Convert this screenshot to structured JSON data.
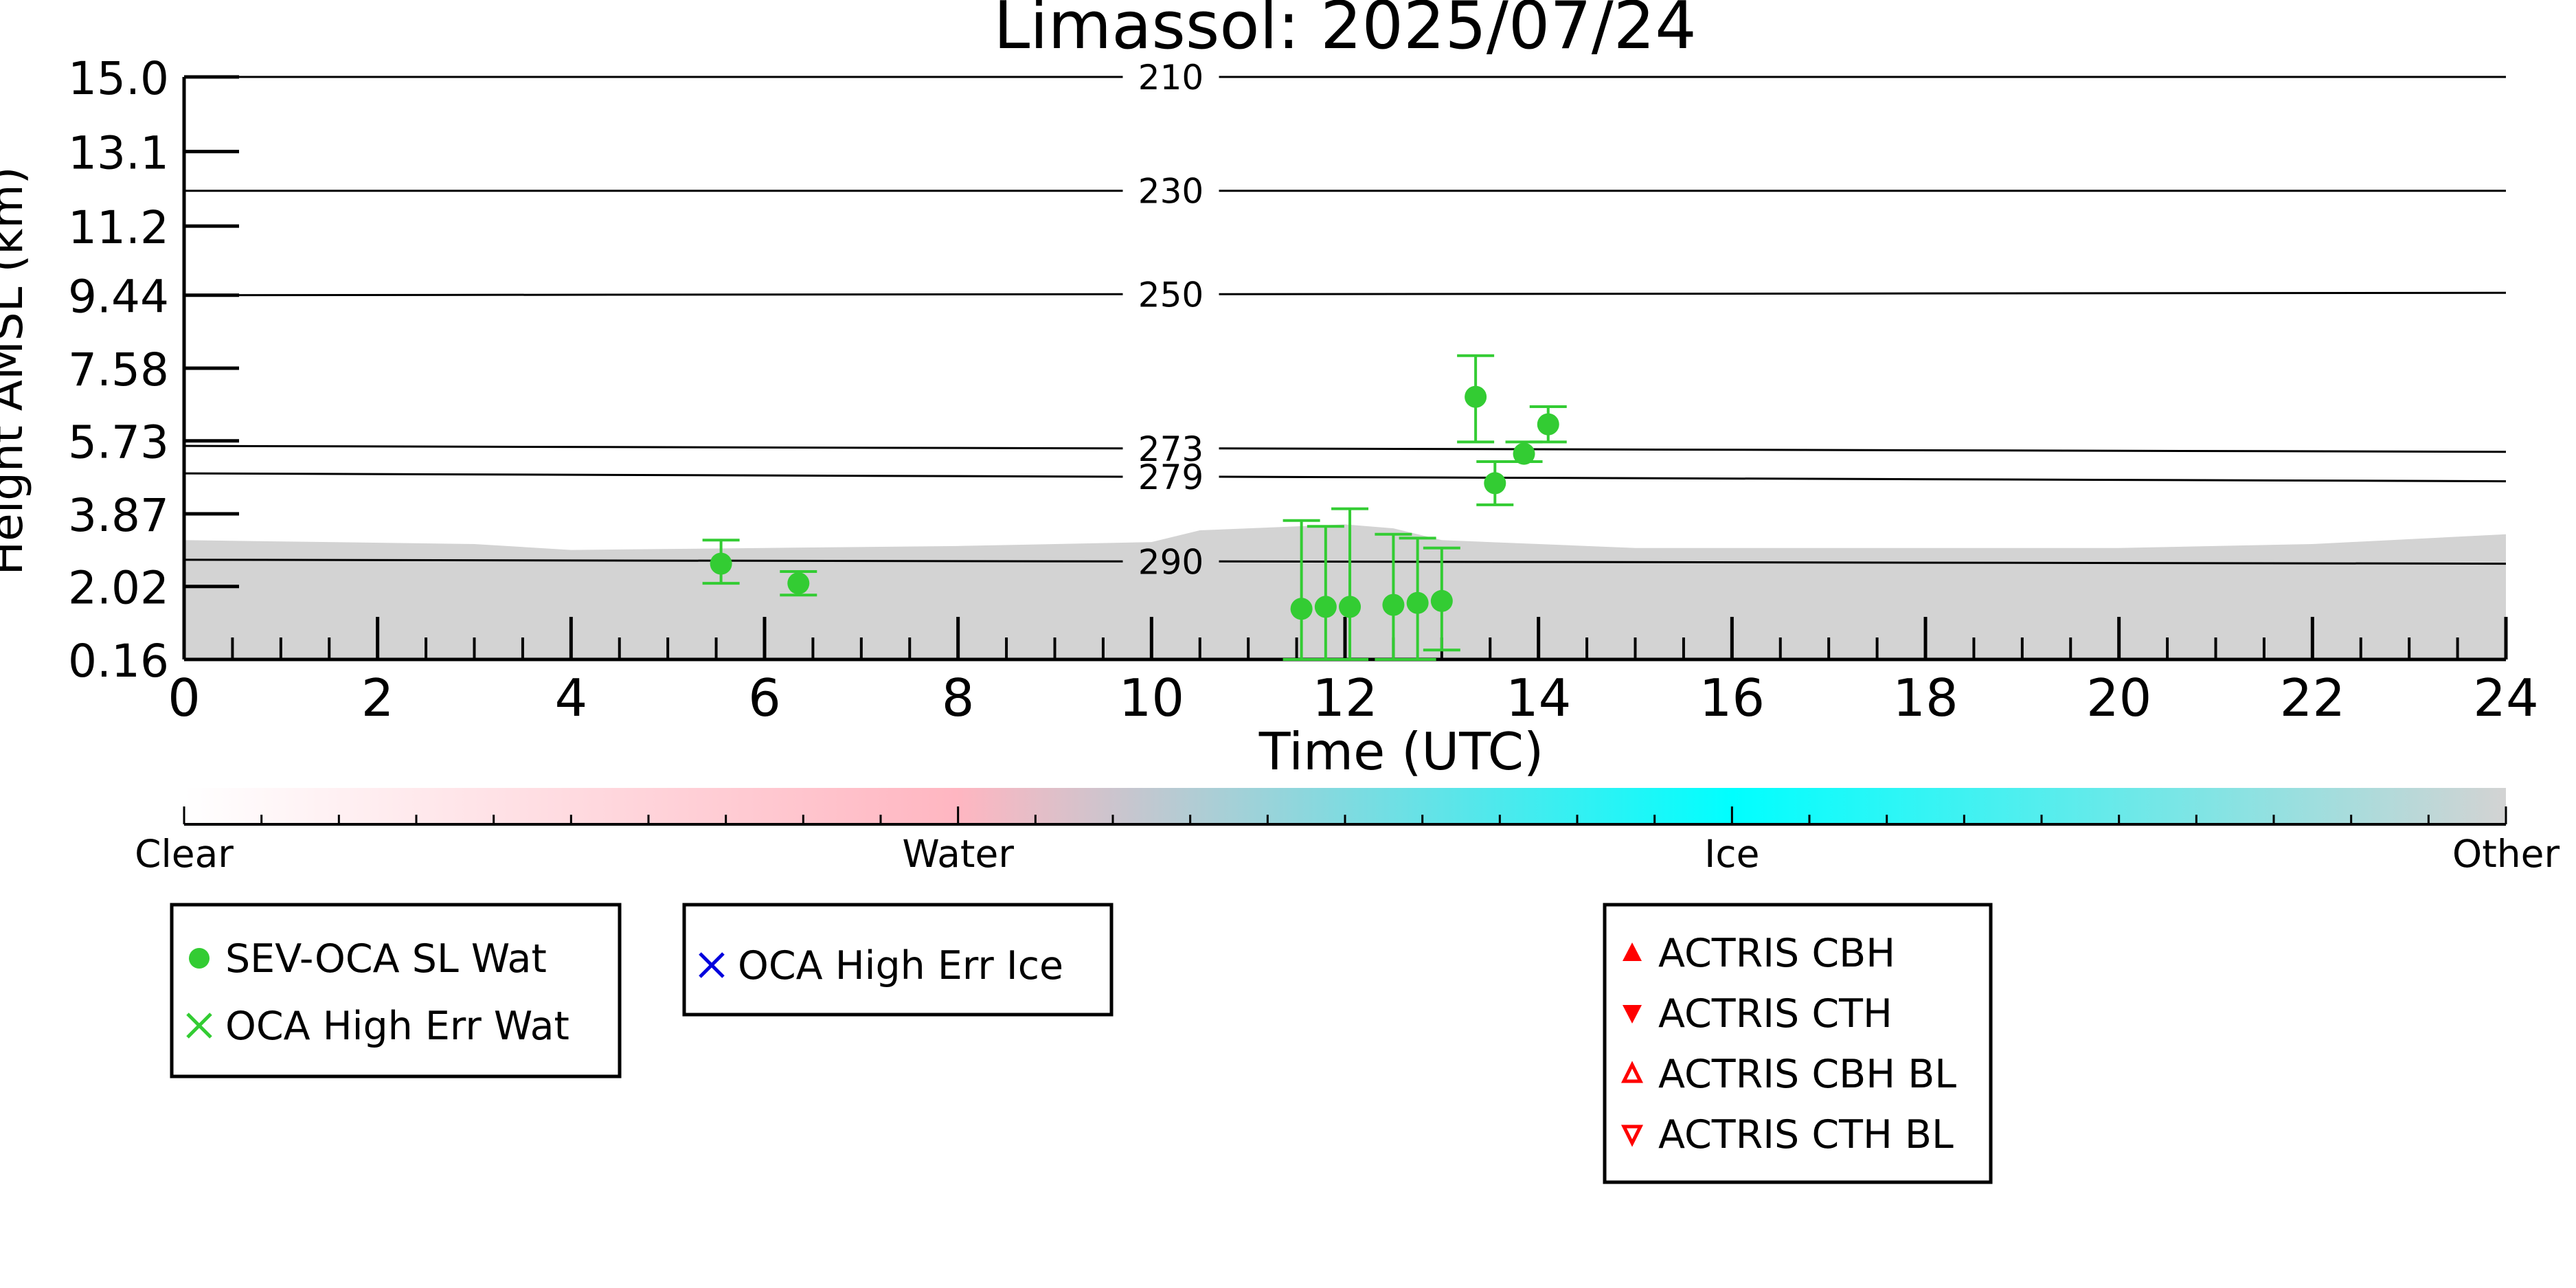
{
  "chart_data": {
    "type": "scatter",
    "title": "Limassol: 2025/07/24",
    "xlabel": "Time (UTC)",
    "ylabel": "Height AMSL (km)",
    "xlim": [
      0,
      24
    ],
    "ylim": [
      0.16,
      15.0
    ],
    "x_ticks": [
      "0",
      "2",
      "4",
      "6",
      "8",
      "10",
      "12",
      "14",
      "16",
      "18",
      "20",
      "22",
      "24"
    ],
    "y_ticks": [
      "0.16",
      "2.02",
      "3.87",
      "5.73",
      "7.58",
      "9.44",
      "11.2",
      "13.1",
      "15.0"
    ],
    "temperature_contours": [
      {
        "label": "210",
        "y_left": 15.0,
        "y_right": 15.0
      },
      {
        "label": "230",
        "y_left": 12.1,
        "y_right": 12.1
      },
      {
        "label": "250",
        "y_left": 9.44,
        "y_right": 9.5
      },
      {
        "label": "273",
        "y_left": 5.6,
        "y_right": 5.45
      },
      {
        "label": "279",
        "y_left": 4.9,
        "y_right": 4.7
      },
      {
        "label": "290",
        "y_left": 2.7,
        "y_right": 2.6
      }
    ],
    "series": [
      {
        "name": "SEV-OCA SL Wat",
        "color": "#33cc33",
        "marker": "circle",
        "points": [
          {
            "x": 5.55,
            "y": 2.6,
            "err_low": 2.1,
            "err_high": 3.2
          },
          {
            "x": 6.35,
            "y": 2.1,
            "err_low": 1.8,
            "err_high": 2.4
          },
          {
            "x": 11.55,
            "y": 1.45,
            "err_low": 0.16,
            "err_high": 3.7
          },
          {
            "x": 11.8,
            "y": 1.5,
            "err_low": 0.16,
            "err_high": 3.55
          },
          {
            "x": 12.05,
            "y": 1.5,
            "err_low": 0.16,
            "err_high": 4.0
          },
          {
            "x": 12.5,
            "y": 1.55,
            "err_low": 0.16,
            "err_high": 3.35
          },
          {
            "x": 12.75,
            "y": 1.6,
            "err_low": 0.16,
            "err_high": 3.25
          },
          {
            "x": 13.0,
            "y": 1.65,
            "err_low": 0.4,
            "err_high": 3.0
          },
          {
            "x": 13.35,
            "y": 6.85,
            "err_low": 5.7,
            "err_high": 7.9
          },
          {
            "x": 13.55,
            "y": 4.65,
            "err_low": 4.1,
            "err_high": 5.2
          },
          {
            "x": 13.85,
            "y": 5.4,
            "err_low": 5.2,
            "err_high": 5.7
          },
          {
            "x": 14.1,
            "y": 6.15,
            "err_low": 5.7,
            "err_high": 6.6
          }
        ]
      },
      {
        "name": "OCA High Err Wat",
        "color": "#33cc33",
        "marker": "x",
        "points": []
      },
      {
        "name": "OCA High Err Ice",
        "color": "#0000dd",
        "marker": "x",
        "points": []
      },
      {
        "name": "ACTRIS CBH",
        "color": "#ff0000",
        "marker": "triangle-up",
        "points": []
      },
      {
        "name": "ACTRIS CTH",
        "color": "#ff0000",
        "marker": "triangle-down",
        "points": []
      },
      {
        "name": "ACTRIS CBH BL",
        "color": "#ff0000",
        "marker": "triangle-up-open",
        "points": []
      },
      {
        "name": "ACTRIS CTH BL",
        "color": "#ff0000",
        "marker": "triangle-down-open",
        "points": []
      }
    ],
    "background_cloud_mask": {
      "category": "Other",
      "color": "#d3d3d3",
      "top_km": [
        [
          0,
          3.2
        ],
        [
          3,
          3.1
        ],
        [
          4,
          2.95
        ],
        [
          6,
          3.0
        ],
        [
          8,
          3.05
        ],
        [
          10,
          3.15
        ],
        [
          10.5,
          3.45
        ],
        [
          12,
          3.6
        ],
        [
          12.5,
          3.5
        ],
        [
          13,
          3.2
        ],
        [
          15,
          3.0
        ],
        [
          16,
          3.0
        ],
        [
          18,
          3.0
        ],
        [
          20,
          3.0
        ],
        [
          22,
          3.1
        ],
        [
          24,
          3.35
        ]
      ]
    },
    "colorbar": {
      "labels": [
        "Clear",
        "Water",
        "Ice",
        "Other"
      ],
      "colors": [
        "#ffffff",
        "#ffb6c1",
        "#00ffff",
        "#d3d3d3"
      ]
    },
    "legend_groups": [
      [
        "SEV-OCA SL Wat",
        "OCA High Err Wat"
      ],
      [
        "OCA High Err Ice"
      ],
      [
        "ACTRIS CBH",
        "ACTRIS CTH",
        "ACTRIS CBH BL",
        "ACTRIS CTH BL"
      ]
    ]
  }
}
